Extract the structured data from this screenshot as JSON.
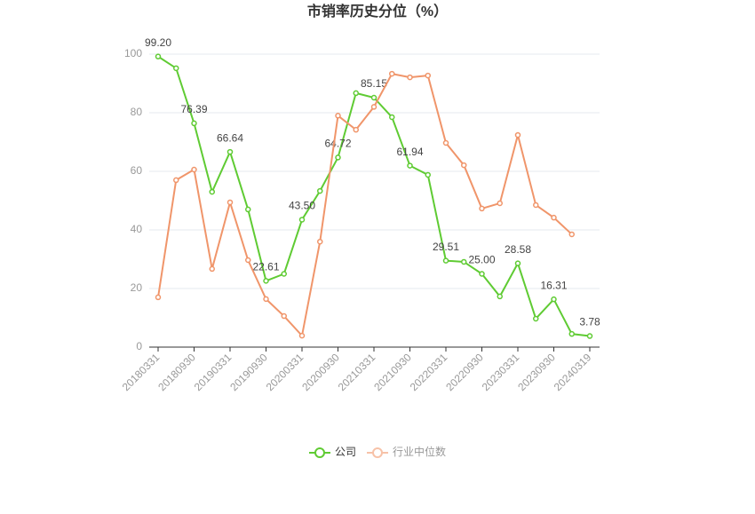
{
  "chart_data": {
    "type": "line",
    "title": "市销率历史分位（%）",
    "categories": [
      "20180331",
      null,
      "20180930",
      null,
      "20190331",
      null,
      "20190930",
      null,
      "20200331",
      null,
      "20200930",
      null,
      "20210331",
      null,
      "20210930",
      null,
      "20220331",
      null,
      "20220930",
      null,
      "20230331",
      null,
      "20230930",
      null,
      "20240319"
    ],
    "series": [
      {
        "name": "公司",
        "color": "#5fcb33",
        "values": [
          99.2,
          95.2,
          76.39,
          53,
          66.64,
          47,
          22.61,
          25,
          43.5,
          53.3,
          64.72,
          86.7,
          85.15,
          78.5,
          61.94,
          58.8,
          29.51,
          29.1,
          25.0,
          17.3,
          28.58,
          9.7,
          16.31,
          4.5,
          3.78
        ],
        "value_labels": [
          "99.20",
          null,
          "76.39",
          null,
          "66.64",
          null,
          "22.61",
          null,
          "43.50",
          null,
          "64.72",
          null,
          "85.15",
          null,
          "61.94",
          null,
          "29.51",
          null,
          "25.00",
          null,
          "28.58",
          null,
          "16.31",
          null,
          "3.78"
        ]
      },
      {
        "name": "行业中位数",
        "color": "#f0956a",
        "values": [
          17,
          57,
          60.6,
          26.7,
          49.4,
          29.7,
          16.4,
          10.6,
          3.9,
          36,
          79,
          74.2,
          82,
          93.3,
          92.1,
          92.7,
          69.7,
          62.1,
          47.3,
          49.1,
          72.4,
          48.5,
          44.2,
          38.5,
          null
        ]
      }
    ],
    "ylim": [
      0,
      100
    ],
    "yticks": [
      0,
      20,
      40,
      60,
      80,
      100
    ],
    "grid": true,
    "legend": "bottom"
  }
}
